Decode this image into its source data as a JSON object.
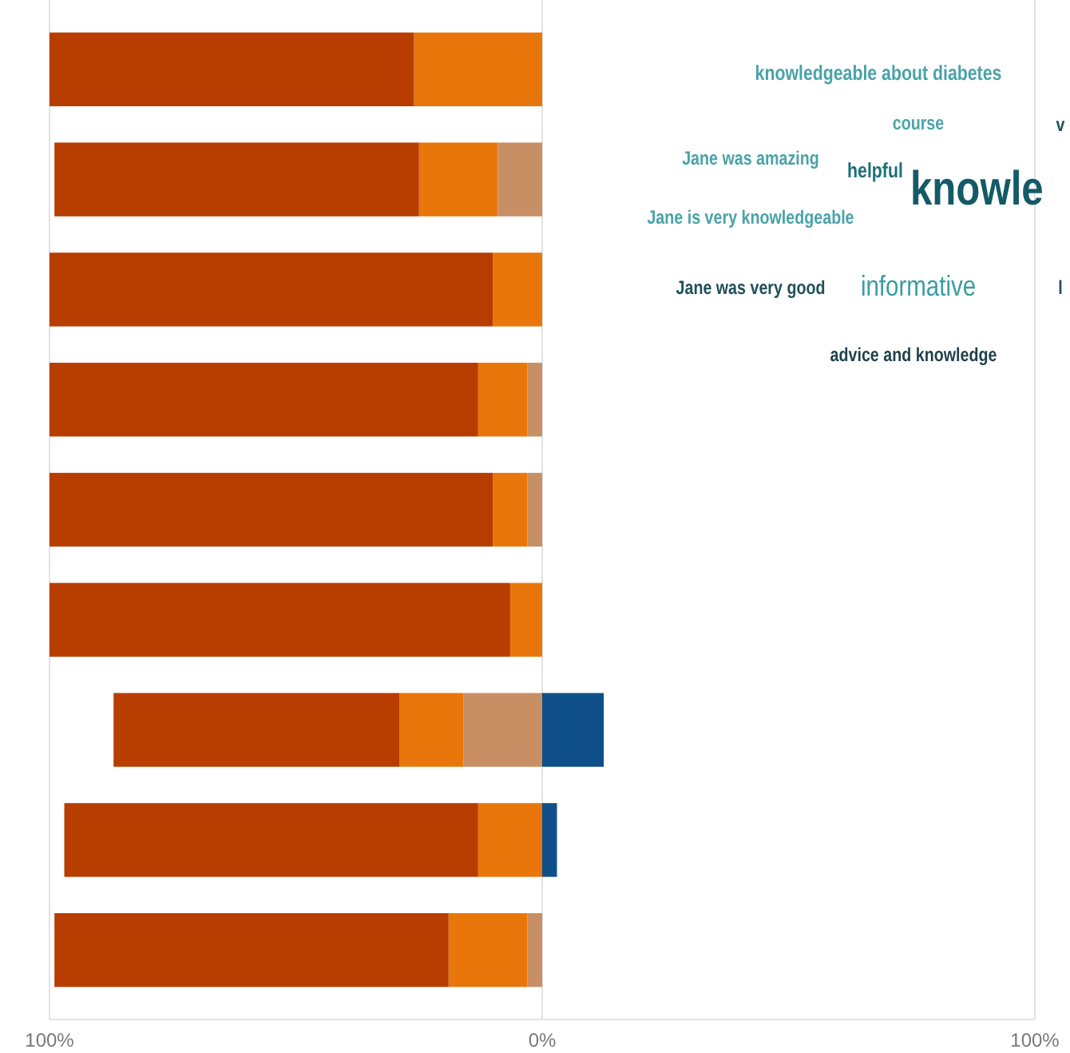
{
  "chart_data": [
    {
      "type": "bar",
      "orientation": "horizontal",
      "stacked": true,
      "categories": [
        null,
        null,
        null,
        null,
        null,
        null,
        null,
        null,
        null
      ],
      "series": [
        {
          "color": "#c98f64",
          "values": [
            0,
            -9,
            0,
            -3,
            -3,
            0,
            -16,
            0,
            -3
          ]
        },
        {
          "color": "#e8760a",
          "values": [
            -26,
            -16,
            -10,
            -10,
            -7,
            -6.5,
            -13,
            -13,
            -16
          ]
        },
        {
          "color": "#b83d00",
          "values": [
            -74,
            -74,
            -90,
            -87,
            -90,
            -93.5,
            -58,
            -84,
            -80
          ]
        },
        {
          "color": "#0f4f8a",
          "values": [
            0,
            0,
            0,
            0,
            0,
            0,
            12.5,
            3,
            0
          ]
        }
      ],
      "xlim": [
        -100,
        100
      ],
      "xticks": [
        {
          "value": -100,
          "label": "100%"
        },
        {
          "value": 0,
          "label": "0%"
        },
        {
          "value": 100,
          "label": "100%"
        }
      ],
      "grid": "x"
    },
    {
      "type": "other",
      "annotations": [
        "knowledgeable about diabetes",
        "course",
        "v",
        "Jane was amazing",
        "helpful",
        "knowle",
        "Jane is very knowledgeable",
        "Jane was very good",
        "informative",
        "l",
        "advice and knowledge"
      ]
    }
  ]
}
